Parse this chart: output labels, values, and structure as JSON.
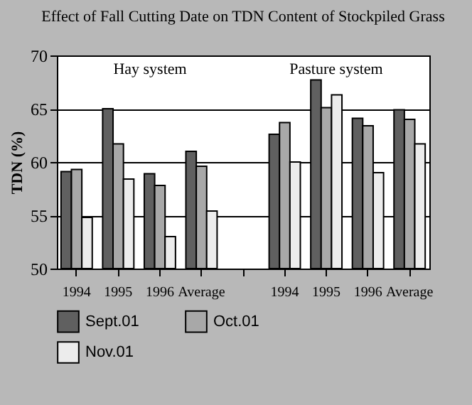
{
  "chart_data": {
    "type": "bar",
    "title": "Effect of Fall Cutting Date on TDN Content of Stockpiled Grass",
    "ylabel": "TDN (%)",
    "categories": [
      "1994",
      "1995",
      "1996",
      "Average",
      null,
      "1994",
      "1995",
      "1996",
      "Average"
    ],
    "series": [
      {
        "name": "Sept.01",
        "color": "#606060",
        "values": [
          59.1,
          65.0,
          58.9,
          61.0,
          null,
          62.6,
          67.7,
          64.1,
          64.9
        ]
      },
      {
        "name": "Oct.01",
        "color": "#a8a8a8",
        "values": [
          59.3,
          61.7,
          57.8,
          59.6,
          null,
          63.7,
          65.1,
          63.4,
          64.0
        ]
      },
      {
        "name": "Nov.01",
        "color": "#ececec",
        "values": [
          54.8,
          58.4,
          53.0,
          55.4,
          null,
          60.0,
          66.3,
          59.0,
          61.7
        ]
      }
    ],
    "annotations": [
      "Hay system",
      "Pasture system"
    ],
    "ylim": [
      50,
      70
    ],
    "yticks": [
      50,
      55,
      60,
      65,
      70
    ],
    "grid": "y",
    "legend": "bottom"
  }
}
